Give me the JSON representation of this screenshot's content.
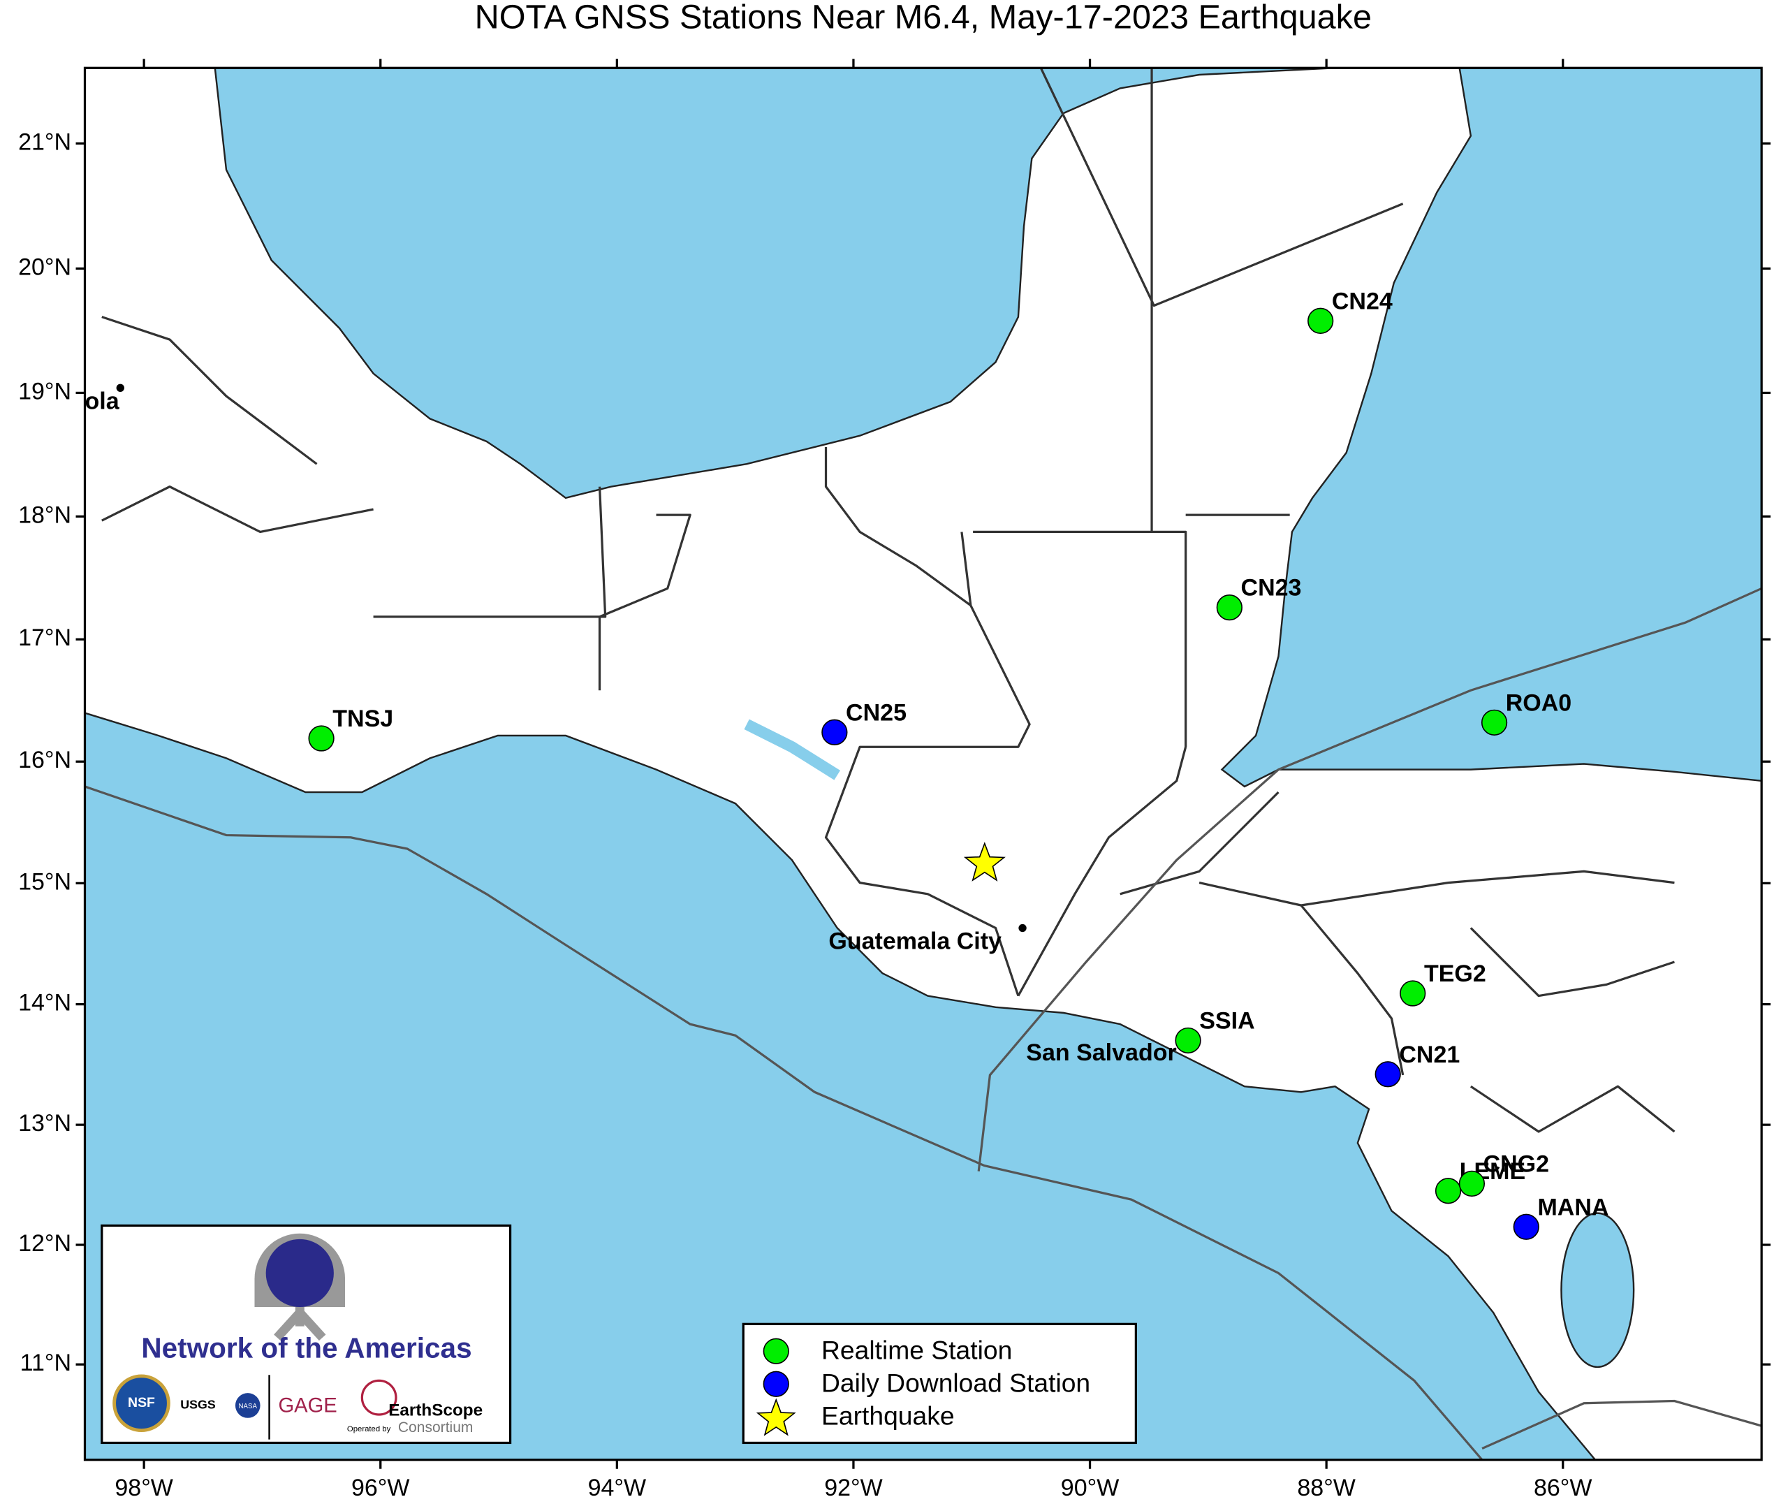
{
  "map": {
    "title": "NOTA GNSS Stations Near M6.4, May-17-2023 Earthquake",
    "xlim": [
      -98.5,
      -84.32
    ],
    "ylim": [
      10.2,
      21.6
    ],
    "xticks": [
      {
        "value": -98,
        "label": "98°W"
      },
      {
        "value": -96,
        "label": "96°W"
      },
      {
        "value": -94,
        "label": "94°W"
      },
      {
        "value": -92,
        "label": "92°W"
      },
      {
        "value": -90,
        "label": "90°W"
      },
      {
        "value": -88,
        "label": "88°W"
      },
      {
        "value": -86,
        "label": "86°W"
      }
    ],
    "yticks": [
      {
        "value": 11,
        "label": "11°N"
      },
      {
        "value": 12,
        "label": "12°N"
      },
      {
        "value": 13,
        "label": "13°N"
      },
      {
        "value": 14,
        "label": "14°N"
      },
      {
        "value": 15,
        "label": "15°N"
      },
      {
        "value": 16,
        "label": "16°N"
      },
      {
        "value": 17,
        "label": "17°N"
      },
      {
        "value": 18,
        "label": "18°N"
      },
      {
        "value": 19,
        "label": "19°N"
      },
      {
        "value": 20,
        "label": "20°N"
      },
      {
        "value": 21,
        "label": "21°N"
      }
    ],
    "station_groups": [
      {
        "name": "Realtime Station",
        "color": "#00ee00",
        "stations": [
          {
            "name": "CN24",
            "lon": -88.05,
            "lat": 19.58
          },
          {
            "name": "CN23",
            "lon": -88.82,
            "lat": 17.26
          },
          {
            "name": "TNSJ",
            "lon": -96.5,
            "lat": 16.19
          },
          {
            "name": "ROA0",
            "lon": -86.58,
            "lat": 16.32
          },
          {
            "name": "TEG2",
            "lon": -87.27,
            "lat": 14.09
          },
          {
            "name": "SSIA",
            "lon": -89.17,
            "lat": 13.7
          },
          {
            "name": "LEME",
            "lon": -86.97,
            "lat": 12.45
          },
          {
            "name": "CNG2",
            "lon": -86.77,
            "lat": 12.51
          }
        ]
      },
      {
        "name": "Daily Download Station",
        "color": "#0000ff",
        "stations": [
          {
            "name": "CN25",
            "lon": -92.16,
            "lat": 16.24
          },
          {
            "name": "CN21",
            "lon": -87.48,
            "lat": 13.42
          },
          {
            "name": "MANA",
            "lon": -86.31,
            "lat": 12.15
          }
        ]
      }
    ],
    "earthquake": {
      "name": "Earthquake",
      "color": "#ffff00",
      "lon": -90.89,
      "lat": 15.16
    },
    "cities": [
      {
        "name": "Guatemala City",
        "lon": -90.57,
        "lat": 14.63
      },
      {
        "name": "San Salvador",
        "lon": -89.19,
        "lat": 13.69
      },
      {
        "name": "ola",
        "lon": -98.2,
        "lat": 19.04
      }
    ]
  },
  "logo": {
    "title": "Network of the Americas",
    "nsf": "NSF",
    "usgs": "USGS",
    "nasa": "NASA",
    "gage": "GAGE",
    "earthscope": "EarthScope",
    "consortium": "Consortium",
    "operated": "Operated by"
  }
}
